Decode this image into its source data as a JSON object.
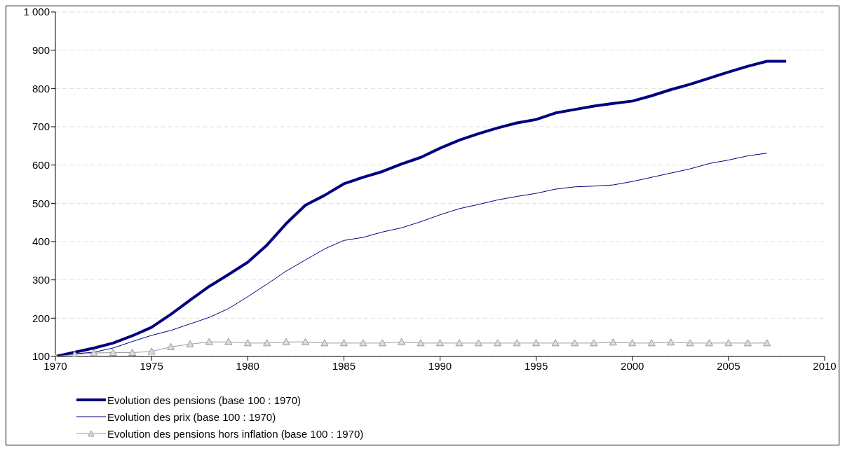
{
  "chart_data": {
    "type": "line",
    "x": [
      1970,
      1971,
      1972,
      1973,
      1974,
      1975,
      1976,
      1977,
      1978,
      1979,
      1980,
      1981,
      1982,
      1983,
      1984,
      1985,
      1986,
      1987,
      1988,
      1989,
      1990,
      1991,
      1992,
      1993,
      1994,
      1995,
      1996,
      1997,
      1998,
      1999,
      2000,
      2001,
      2002,
      2003,
      2004,
      2005,
      2006,
      2007,
      2008
    ],
    "series": [
      {
        "name": "Evolution des pensions (base 100 : 1970)",
        "color": "#000080",
        "marker": "none",
        "values": [
          100,
          111,
          122,
          135,
          154,
          176,
          210,
          247,
          283,
          314,
          346,
          391,
          447,
          495,
          521,
          551,
          568,
          583,
          603,
          620,
          644,
          665,
          682,
          697,
          710,
          719,
          736,
          745,
          754,
          761,
          767,
          781,
          797,
          811,
          827,
          843,
          858,
          871,
          871
        ]
      },
      {
        "name": "Evolution des prix (base 100 : 1970)",
        "color": "#000080",
        "marker": "none",
        "values": [
          100,
          107,
          111,
          122,
          139,
          155,
          168,
          185,
          202,
          225,
          256,
          289,
          323,
          352,
          381,
          403,
          411,
          425,
          436,
          452,
          470,
          486,
          497,
          509,
          518,
          526,
          537,
          543,
          545,
          548,
          557,
          568,
          579,
          590,
          604,
          613,
          624,
          631,
          null
        ]
      },
      {
        "name": "Evolution des pensions hors inflation (base 100 : 1970)",
        "color": "#999999",
        "marker": "triangle",
        "values": [
          100,
          105,
          109,
          110,
          110,
          113,
          125,
          132,
          138,
          138,
          135,
          135,
          138,
          138,
          135,
          135,
          135,
          135,
          138,
          135,
          135,
          135,
          135,
          135,
          135,
          135,
          135,
          135,
          135,
          137,
          135,
          135,
          137,
          135,
          135,
          135,
          135,
          135,
          null
        ]
      }
    ],
    "xlim": [
      1970,
      2010
    ],
    "xticks": [
      1970,
      1975,
      1980,
      1985,
      1990,
      1995,
      2000,
      2005,
      2010
    ],
    "ylim": [
      100,
      1000
    ],
    "yticks": [
      100,
      200,
      300,
      400,
      500,
      600,
      700,
      800,
      900,
      {
        "value": 1000,
        "label": "1 000"
      }
    ],
    "grid": "y",
    "legend": "bottom"
  }
}
